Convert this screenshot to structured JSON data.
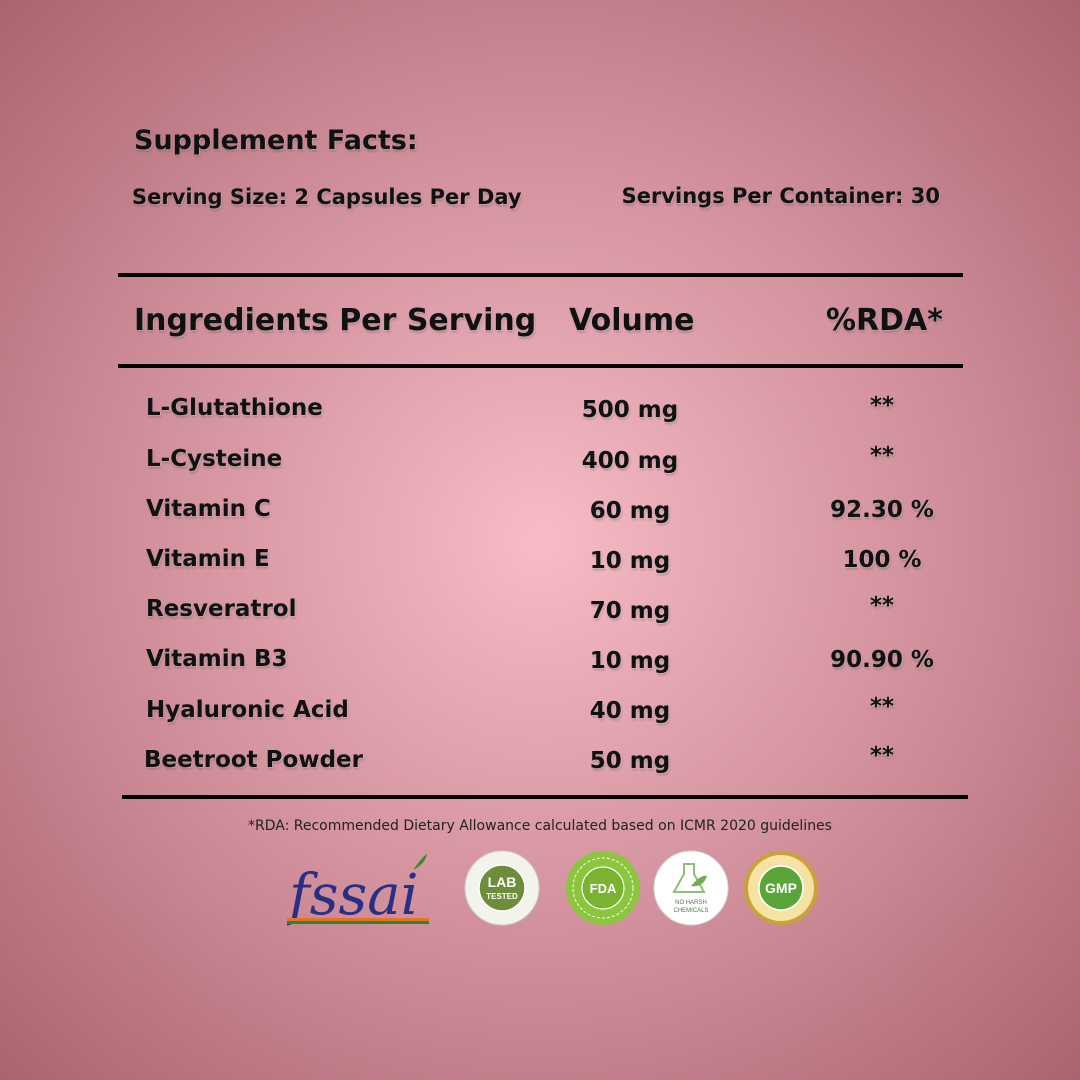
{
  "title": "Supplement Facts:",
  "serving_size": "Serving Size: 2 Capsules Per Day",
  "servings_per_container": "Servings Per Container: 30",
  "table": {
    "headers": [
      "Ingredients Per Serving",
      "Volume",
      "%RDA*"
    ],
    "rows": [
      {
        "name": "L-Glutathione",
        "volume": "500 mg",
        "rda": "**"
      },
      {
        "name": "L-Cysteine",
        "volume": "400 mg",
        "rda": "**"
      },
      {
        "name": "Vitamin C",
        "volume": "60 mg",
        "rda": "92.30 %"
      },
      {
        "name": "Vitamin E",
        "volume": "10 mg",
        "rda": "100 %"
      },
      {
        "name": "Resveratrol",
        "volume": "70 mg",
        "rda": "**"
      },
      {
        "name": "Vitamin B3",
        "volume": "10 mg",
        "rda": "90.90 %"
      },
      {
        "name": "Hyaluronic Acid",
        "volume": "40 mg",
        "rda": "**"
      },
      {
        "name": "Beetroot Powder",
        "volume": "50 mg",
        "rda": "**"
      }
    ]
  },
  "footnote": "*RDA: Recommended Dietary Allowance calculated based on ICMR 2020 guidelines",
  "badges": {
    "fssai": "fssai",
    "lab": {
      "main": "LAB",
      "sub": "TESTED"
    },
    "fda": "FDA",
    "no_harsh": [
      "NO HARSH",
      "CHEMICALS"
    ],
    "gmp": "GMP"
  },
  "colors": {
    "background_center": "#f7bcc6",
    "background_edge": "#a9646f",
    "text": "#111111"
  }
}
